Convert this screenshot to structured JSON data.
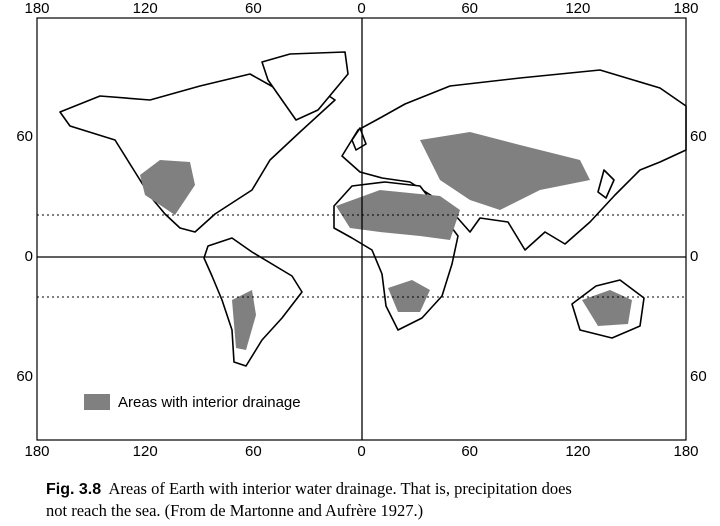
{
  "axes": {
    "top": [
      "180",
      "120",
      "60",
      "0",
      "60",
      "120",
      "180"
    ],
    "bottom": [
      "180",
      "120",
      "60",
      "0",
      "60",
      "120",
      "180"
    ],
    "left": [
      "60",
      "0",
      "60"
    ],
    "right": [
      "60",
      "0",
      "60"
    ]
  },
  "legend": {
    "label": "Areas with interior drainage"
  },
  "caption": {
    "figure": "Fig. 3.8",
    "lines": [
      "Areas of Earth with interior water drainage. That is, precipitation does",
      "not reach the sea. (From de Martonne and Aufrère 1927.)"
    ]
  }
}
